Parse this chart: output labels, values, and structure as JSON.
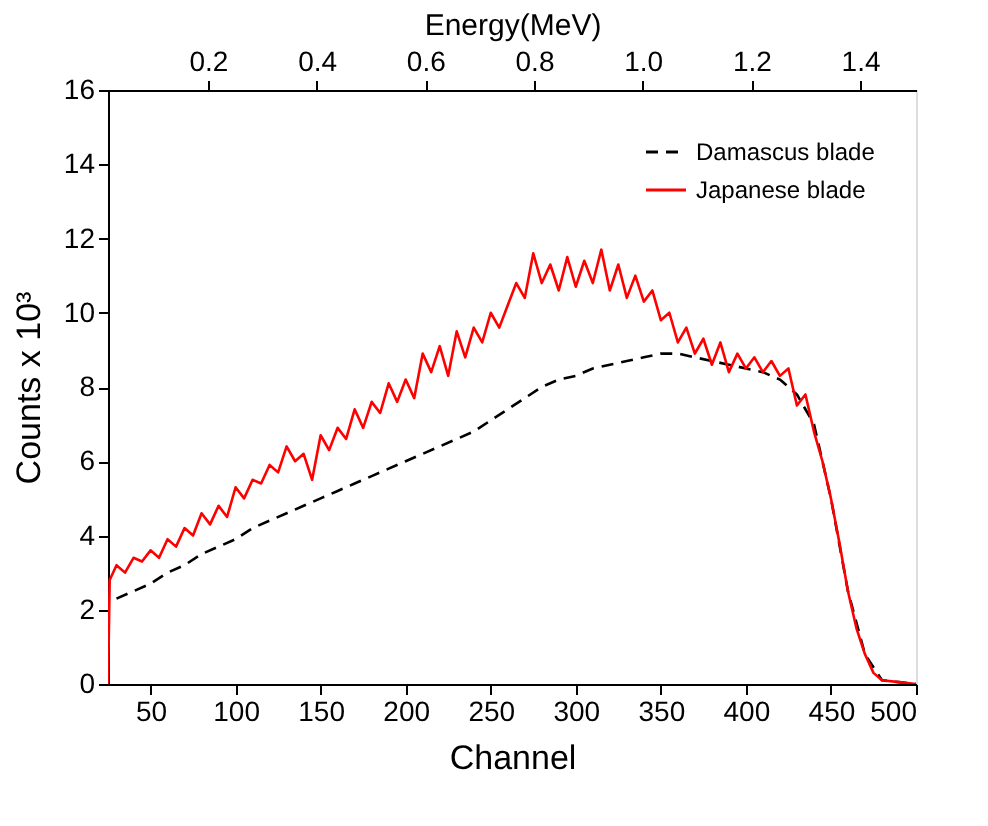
{
  "chart_data": {
    "type": "line",
    "xlabel": "Channel",
    "ylabel": "Counts x 10³",
    "x2label": "Energy(MeV)",
    "xlim": [
      25,
      500
    ],
    "xticks": [
      50,
      100,
      150,
      200,
      250,
      300,
      350,
      400,
      450,
      500
    ],
    "ylim": [
      0,
      16
    ],
    "yticks": [
      0,
      2,
      4,
      6,
      8,
      10,
      12,
      14,
      16
    ],
    "x2lim": [
      0.016,
      1.503
    ],
    "x2ticks": [
      0.2,
      0.4,
      0.6,
      0.8,
      {
        "value": 1.0,
        "label": "1.0"
      },
      1.2,
      1.4
    ],
    "grid": false,
    "legend": "top right",
    "marker": "none",
    "series": [
      {
        "name": "Damascus blade",
        "color": "#000000",
        "line_style": "dashed",
        "x": [
          30,
          40,
          50,
          60,
          70,
          80,
          90,
          100,
          110,
          120,
          130,
          140,
          150,
          160,
          170,
          180,
          190,
          200,
          210,
          220,
          230,
          240,
          250,
          260,
          270,
          280,
          290,
          300,
          310,
          320,
          330,
          340,
          350,
          360,
          370,
          380,
          390,
          400,
          410,
          420,
          430,
          440,
          450,
          460,
          470,
          480,
          490,
          500
        ],
        "values": [
          2.3,
          2.5,
          2.7,
          3.0,
          3.2,
          3.5,
          3.7,
          3.9,
          4.2,
          4.4,
          4.6,
          4.8,
          5.0,
          5.2,
          5.4,
          5.6,
          5.8,
          6.0,
          6.2,
          6.4,
          6.6,
          6.8,
          7.1,
          7.4,
          7.7,
          8.0,
          8.2,
          8.3,
          8.5,
          8.6,
          8.7,
          8.8,
          8.9,
          8.9,
          8.8,
          8.7,
          8.6,
          8.5,
          8.4,
          8.2,
          7.8,
          7.0,
          5.0,
          2.5,
          0.8,
          0.1,
          0.05,
          0
        ]
      },
      {
        "name": "Japanese blade",
        "color": "#ff0000",
        "line_style": "solid",
        "x": [
          25,
          26,
          30,
          35,
          40,
          45,
          50,
          55,
          60,
          65,
          70,
          75,
          80,
          85,
          90,
          95,
          100,
          105,
          110,
          115,
          120,
          125,
          130,
          135,
          140,
          145,
          150,
          155,
          160,
          165,
          170,
          175,
          180,
          185,
          190,
          195,
          200,
          205,
          210,
          215,
          220,
          225,
          230,
          235,
          240,
          245,
          250,
          255,
          260,
          265,
          270,
          275,
          280,
          285,
          290,
          295,
          300,
          305,
          310,
          315,
          320,
          325,
          330,
          335,
          340,
          345,
          350,
          355,
          360,
          365,
          370,
          375,
          380,
          385,
          390,
          395,
          400,
          405,
          410,
          415,
          420,
          425,
          430,
          435,
          440,
          445,
          450,
          455,
          460,
          465,
          470,
          475,
          480,
          490,
          500
        ],
        "values": [
          0,
          2.8,
          3.2,
          3.0,
          3.4,
          3.3,
          3.6,
          3.4,
          3.9,
          3.7,
          4.2,
          4.0,
          4.6,
          4.3,
          4.8,
          4.5,
          5.3,
          5.0,
          5.5,
          5.4,
          5.9,
          5.7,
          6.4,
          6.0,
          6.2,
          5.5,
          6.7,
          6.3,
          6.9,
          6.6,
          7.4,
          6.9,
          7.6,
          7.3,
          8.1,
          7.6,
          8.2,
          7.7,
          8.9,
          8.4,
          9.1,
          8.3,
          9.5,
          8.8,
          9.6,
          9.2,
          10.0,
          9.6,
          10.2,
          10.8,
          10.4,
          11.6,
          10.8,
          11.3,
          10.6,
          11.5,
          10.7,
          11.4,
          10.8,
          11.7,
          10.6,
          11.3,
          10.4,
          11.0,
          10.3,
          10.6,
          9.8,
          10.0,
          9.2,
          9.6,
          8.9,
          9.3,
          8.6,
          9.2,
          8.4,
          8.9,
          8.5,
          8.8,
          8.4,
          8.7,
          8.3,
          8.5,
          7.5,
          7.8,
          6.8,
          6.0,
          5.0,
          3.8,
          2.5,
          1.5,
          0.8,
          0.3,
          0.1,
          0.05,
          0
        ]
      }
    ]
  }
}
